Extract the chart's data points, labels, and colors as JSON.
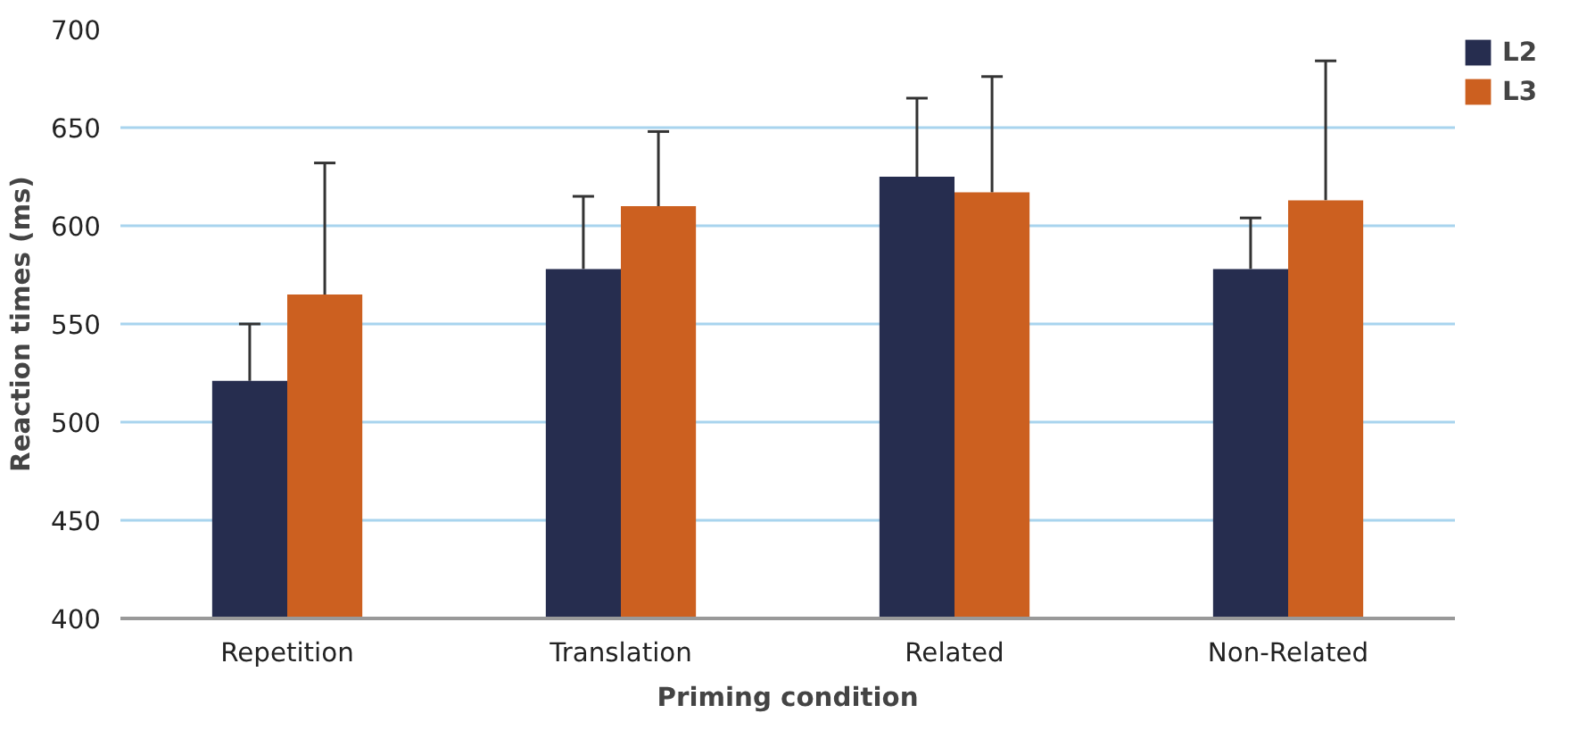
{
  "chart_data": {
    "type": "bar",
    "xlabel": "Priming condition",
    "ylabel": "Reaction times (ms)",
    "categories": [
      "Repetition",
      "Translation",
      "Related",
      "Non-Related"
    ],
    "series": [
      {
        "name": "L2",
        "color": "#262d4f",
        "values": [
          521,
          578,
          625,
          578
        ],
        "errors": [
          [
            521,
            550
          ],
          [
            578,
            615
          ],
          [
            625,
            665
          ],
          [
            578,
            604
          ]
        ]
      },
      {
        "name": "L3",
        "color": "#cc6020",
        "values": [
          565,
          610,
          617,
          613
        ],
        "errors": [
          [
            565,
            632
          ],
          [
            610,
            648
          ],
          [
            617,
            676
          ],
          [
            613,
            684
          ]
        ]
      }
    ],
    "ylim": [
      400,
      700
    ],
    "yticks": [
      400,
      450,
      500,
      550,
      600,
      650,
      700
    ],
    "grid": "y",
    "legend": "top right"
  }
}
